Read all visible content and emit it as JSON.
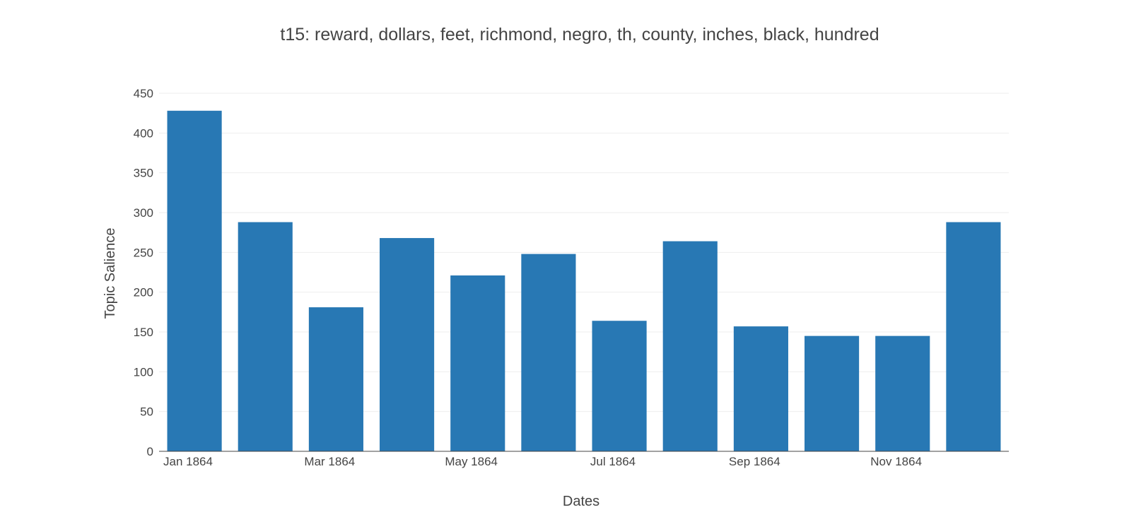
{
  "chart_data": {
    "type": "bar",
    "title": "t15: reward, dollars, feet, richmond, negro, th, county, inches, black, hundred",
    "xlabel": "Dates",
    "ylabel": "Topic Salience",
    "ylim": [
      0,
      450
    ],
    "yticks": [
      0,
      50,
      100,
      150,
      200,
      250,
      300,
      350,
      400,
      450
    ],
    "grid": true,
    "bar_color": "#2878b4",
    "categories": [
      "1864-01",
      "1864-02",
      "1864-03",
      "1864-04",
      "1864-05",
      "1864-06",
      "1864-07",
      "1864-08",
      "1864-09",
      "1864-10",
      "1864-11",
      "1864-12"
    ],
    "values": [
      428,
      288,
      181,
      268,
      221,
      248,
      164,
      264,
      157,
      145,
      145,
      288
    ],
    "xtick_labels": [
      {
        "category": "1864-01",
        "label": "Jan 1864"
      },
      {
        "category": "1864-03",
        "label": "Mar 1864"
      },
      {
        "category": "1864-05",
        "label": "May 1864"
      },
      {
        "category": "1864-07",
        "label": "Jul 1864"
      },
      {
        "category": "1864-09",
        "label": "Sep 1864"
      },
      {
        "category": "1864-11",
        "label": "Nov 1864"
      }
    ]
  }
}
